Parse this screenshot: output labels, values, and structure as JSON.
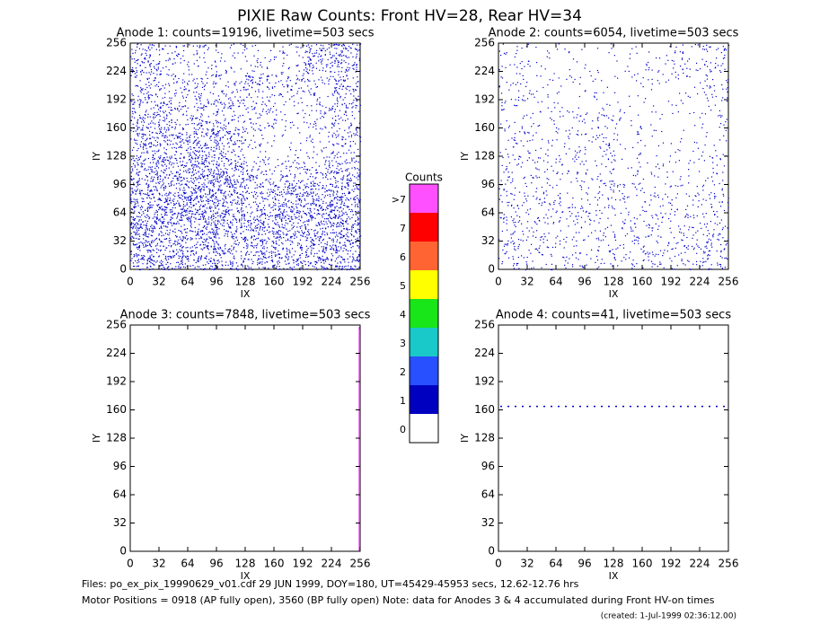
{
  "chart_data": {
    "type": "pixel-map",
    "title": "PIXIE Raw Counts:  Front HV=28, Rear HV=34",
    "panels": [
      {
        "title": "Anode 1: counts=19196, livetime=503 secs",
        "xlabel": "IX",
        "ylabel": "IY",
        "xlim": [
          0,
          256
        ],
        "ylim": [
          0,
          256
        ],
        "xticks": [
          0,
          32,
          64,
          96,
          128,
          160,
          192,
          224,
          256
        ],
        "yticks": [
          0,
          32,
          64,
          96,
          128,
          160,
          192,
          224,
          256
        ],
        "color": "#0000c8",
        "block": 32,
        "density": [
          [
            500,
            450,
            450,
            350,
            400,
            400,
            450,
            500
          ],
          [
            550,
            500,
            550,
            450,
            450,
            500,
            500,
            550
          ],
          [
            500,
            550,
            600,
            500,
            300,
            500,
            500,
            500
          ],
          [
            450,
            450,
            550,
            500,
            250,
            200,
            250,
            350
          ],
          [
            350,
            350,
            450,
            350,
            100,
            50,
            100,
            250
          ],
          [
            350,
            300,
            250,
            250,
            200,
            100,
            150,
            250
          ],
          [
            250,
            200,
            200,
            150,
            250,
            200,
            150,
            300
          ],
          [
            300,
            150,
            150,
            100,
            100,
            100,
            350,
            400
          ]
        ]
      },
      {
        "title": "Anode 2: counts=6054, livetime=503 secs",
        "xlabel": "IX",
        "ylabel": "IY",
        "xlim": [
          0,
          256
        ],
        "ylim": [
          0,
          256
        ],
        "xticks": [
          0,
          32,
          64,
          96,
          128,
          160,
          192,
          224,
          256
        ],
        "yticks": [
          0,
          32,
          64,
          96,
          128,
          160,
          192,
          224,
          256
        ],
        "color": "#0000c8",
        "block": 32,
        "density": [
          [
            150,
            120,
            100,
            90,
            100,
            150,
            150,
            200
          ],
          [
            150,
            130,
            120,
            100,
            130,
            130,
            120,
            150
          ],
          [
            130,
            120,
            110,
            130,
            100,
            100,
            100,
            120
          ],
          [
            120,
            110,
            110,
            110,
            80,
            60,
            50,
            80
          ],
          [
            100,
            80,
            100,
            120,
            70,
            40,
            40,
            60
          ],
          [
            90,
            70,
            80,
            90,
            60,
            30,
            40,
            80
          ],
          [
            100,
            60,
            50,
            50,
            40,
            50,
            60,
            120
          ],
          [
            90,
            50,
            40,
            30,
            40,
            60,
            120,
            150
          ]
        ]
      },
      {
        "title": "Anode 3: counts=7848, livetime=503 secs",
        "xlabel": "IX",
        "ylabel": "IY",
        "xlim": [
          0,
          256
        ],
        "ylim": [
          0,
          256
        ],
        "xticks": [
          0,
          32,
          64,
          96,
          128,
          160,
          192,
          224,
          256
        ],
        "yticks": [
          0,
          32,
          64,
          96,
          128,
          160,
          192,
          224,
          256
        ],
        "color": "#ff50ff",
        "line_x": 255
      },
      {
        "title": "Anode 4: counts=41, livetime=503 secs",
        "xlabel": "IX",
        "ylabel": "IY",
        "xlim": [
          0,
          256
        ],
        "ylim": [
          0,
          256
        ],
        "xticks": [
          0,
          32,
          64,
          96,
          128,
          160,
          192,
          224,
          256
        ],
        "yticks": [
          0,
          32,
          64,
          96,
          128,
          160,
          192,
          224,
          256
        ],
        "color": "#0000c8",
        "line_y": 164
      }
    ],
    "colorbar": {
      "title": "Counts",
      "levels": [
        {
          "label": "0",
          "color": "#ffffff"
        },
        {
          "label": "1",
          "color": "#0000c0"
        },
        {
          "label": "2",
          "color": "#2850ff"
        },
        {
          "label": "3",
          "color": "#19c8c8"
        },
        {
          "label": "4",
          "color": "#19e619"
        },
        {
          "label": "5",
          "color": "#ffff00"
        },
        {
          "label": "6",
          "color": "#ff6432"
        },
        {
          "label": "7",
          "color": "#ff0000"
        },
        {
          "label": ">7",
          "color": "#ff50ff"
        }
      ]
    },
    "footer": [
      "Files: po_ex_pix_19990629_v01.cdf    29 JUN 1999, DOY=180, UT=45429-45953 secs, 12.62-12.76 hrs",
      "Motor Positions = 0918 (AP fully open), 3560 (BP fully open)    Note: data for Anodes 3 & 4 accumulated during Front HV-on times",
      "(created:  1-Jul-1999 02:36:12.00)"
    ]
  }
}
